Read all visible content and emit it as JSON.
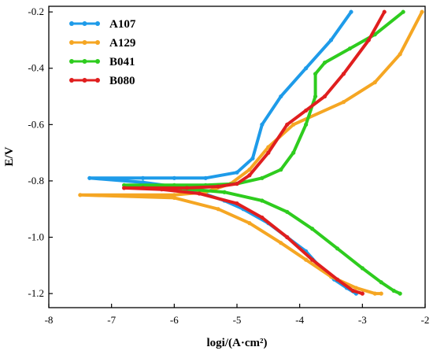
{
  "chart_data": {
    "type": "line",
    "xlabel": "logi/(A·cm²)",
    "ylabel": "E/V",
    "xlim": [
      -8,
      -2
    ],
    "ylim": [
      -1.25,
      -0.18
    ],
    "xticks": [
      -8,
      -7,
      -6,
      -5,
      -4,
      -3,
      -2
    ],
    "xtick_labels": [
      "-8",
      "-7",
      "-6",
      "-5",
      "-4",
      "-3",
      "-2"
    ],
    "yticks": [
      -1.2,
      -1.0,
      -0.8,
      -0.6,
      -0.4,
      -0.2
    ],
    "ytick_labels": [
      "-1.2",
      "-1.0",
      "-0.8",
      "-0.6",
      "-0.4",
      "-0.2"
    ],
    "grid": false,
    "legend_position": "top-left",
    "series": [
      {
        "name": "A107",
        "color": "#1E9BE9",
        "x": [
          -3.18,
          -3.5,
          -3.9,
          -4.3,
          -4.6,
          -4.75,
          -5.0,
          -5.5,
          -6.0,
          -6.5,
          -7.35,
          -6.5,
          -6.0,
          -5.6,
          -5.2,
          -4.9,
          -4.5,
          -4.2,
          -3.9,
          -3.7,
          -3.45,
          -3.25,
          -3.1
        ],
        "y": [
          -0.2,
          -0.3,
          -0.4,
          -0.5,
          -0.6,
          -0.72,
          -0.77,
          -0.79,
          -0.79,
          -0.79,
          -0.79,
          -0.805,
          -0.82,
          -0.84,
          -0.87,
          -0.9,
          -0.95,
          -1.0,
          -1.05,
          -1.1,
          -1.15,
          -1.18,
          -1.2
        ]
      },
      {
        "name": "A129",
        "color": "#F5A623",
        "x": [
          -2.05,
          -2.4,
          -2.8,
          -3.3,
          -4.1,
          -4.5,
          -4.8,
          -5.1,
          -5.5,
          -6.0,
          -7.5,
          -6.0,
          -5.3,
          -4.8,
          -4.3,
          -3.9,
          -3.5,
          -3.1,
          -2.8,
          -2.7
        ],
        "y": [
          -0.2,
          -0.35,
          -0.45,
          -0.52,
          -0.6,
          -0.68,
          -0.76,
          -0.81,
          -0.84,
          -0.85,
          -0.85,
          -0.86,
          -0.9,
          -0.95,
          -1.02,
          -1.08,
          -1.14,
          -1.18,
          -1.2,
          -1.2
        ]
      },
      {
        "name": "B041",
        "color": "#2ECC1E",
        "x": [
          -2.35,
          -2.8,
          -3.2,
          -3.6,
          -3.75,
          -3.75,
          -3.9,
          -4.1,
          -4.3,
          -4.6,
          -5.0,
          -5.5,
          -6.0,
          -6.8,
          -6.0,
          -5.2,
          -4.6,
          -4.2,
          -3.8,
          -3.4,
          -3.0,
          -2.7,
          -2.5,
          -2.4
        ],
        "y": [
          -0.2,
          -0.28,
          -0.33,
          -0.38,
          -0.42,
          -0.5,
          -0.6,
          -0.7,
          -0.76,
          -0.79,
          -0.81,
          -0.815,
          -0.815,
          -0.815,
          -0.825,
          -0.84,
          -0.87,
          -0.91,
          -0.97,
          -1.04,
          -1.11,
          -1.16,
          -1.19,
          -1.2
        ]
      },
      {
        "name": "B080",
        "color": "#E01E1E",
        "x": [
          -2.65,
          -2.9,
          -3.3,
          -3.6,
          -3.9,
          -4.2,
          -4.5,
          -4.8,
          -5.0,
          -5.3,
          -5.8,
          -6.5,
          -6.8,
          -6.2,
          -5.6,
          -5.0,
          -4.6,
          -4.2,
          -3.8,
          -3.4,
          -3.15,
          -3.0
        ],
        "y": [
          -0.2,
          -0.3,
          -0.42,
          -0.5,
          -0.55,
          -0.6,
          -0.7,
          -0.78,
          -0.81,
          -0.82,
          -0.825,
          -0.825,
          -0.825,
          -0.83,
          -0.845,
          -0.88,
          -0.93,
          -1.0,
          -1.08,
          -1.15,
          -1.19,
          -1.2
        ]
      }
    ]
  }
}
